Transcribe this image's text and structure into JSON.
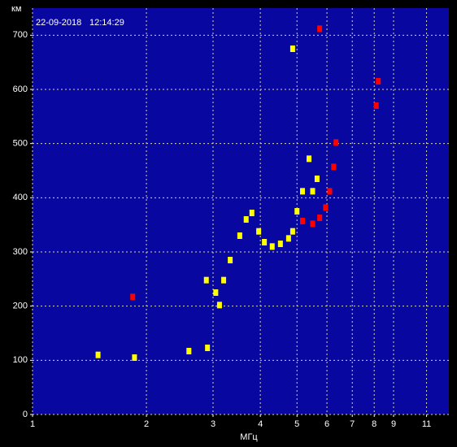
{
  "chart_data": {
    "type": "scatter",
    "date": "22-09-2018",
    "time": "12:14:29",
    "y_label": "км",
    "x_label": "МГц",
    "log_x": true,
    "grid": true,
    "background": "#0808a0",
    "xlim": [
      1,
      12.6
    ],
    "ylim": [
      0,
      750
    ],
    "xticks": [
      1,
      2,
      3,
      4,
      5,
      6,
      7,
      8,
      9,
      11
    ],
    "yticks": [
      0,
      100,
      200,
      300,
      400,
      500,
      600,
      700
    ],
    "series": [
      {
        "color": "#ffff00",
        "x": [
          3.05,
          3.12,
          3.2,
          3.33,
          3.53,
          3.67,
          3.8,
          3.96,
          4.1,
          4.3,
          4.52,
          4.75,
          4.87,
          5.0,
          5.17,
          5.38,
          5.5,
          5.65,
          4.87,
          2.88,
          2.9,
          1.86,
          1.49,
          2.59
        ],
        "values": [
          225,
          202,
          248,
          285,
          330,
          360,
          372,
          338,
          318,
          310,
          315,
          325,
          338,
          375,
          412,
          472,
          412,
          435,
          675,
          248,
          123,
          105,
          110,
          117
        ]
      },
      {
        "color": "#ff0000",
        "x": [
          5.17,
          5.5,
          5.74,
          5.95,
          6.1,
          6.25,
          6.34,
          8.2,
          8.1,
          1.84,
          5.74
        ],
        "values": [
          357,
          352,
          363,
          382,
          412,
          457,
          502,
          615,
          570,
          217,
          712
        ]
      }
    ]
  }
}
